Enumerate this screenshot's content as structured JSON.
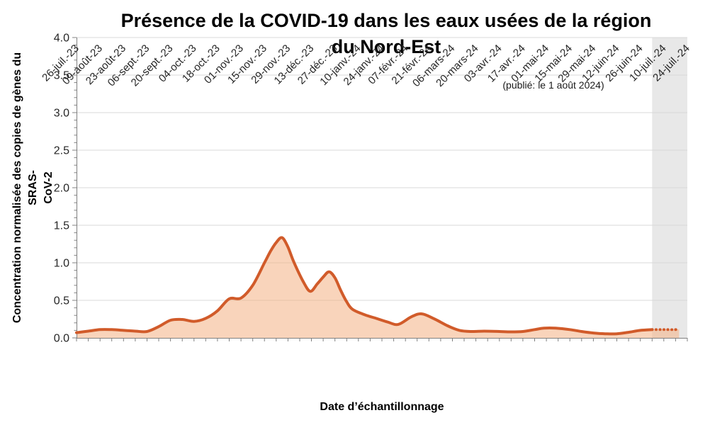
{
  "page": {
    "background": "#FFFFFF"
  },
  "chart_data": {
    "type": "area",
    "title": "Présence de la COVID-19 dans les eaux usées de la région du Nord-Est",
    "title_line1": "Présence de la COVID-19 dans les eaux usées de la région",
    "title_line2": "du Nord-Est",
    "published_note": "(publié: le 1 août 2024)",
    "xlabel": "Date d’échantillonnage",
    "ylabel": "Concentration normalisée des copies de gènes du SRAS-CoV-2",
    "ylabel_line1": "Concentration normalisée des copies de gènes du SRAS-",
    "ylabel_line2": "CoV-2",
    "grid": true,
    "legend": "none",
    "grid_color": "#D9D9D9",
    "axis_color": "#808080",
    "text_color": "#262626",
    "y_axis": {
      "min": 0.0,
      "max": 4.0,
      "major_step": 0.5,
      "minor_step": 0.1,
      "tick_labels": [
        "0.0",
        "0.5",
        "1.0",
        "1.5",
        "2.0",
        "2.5",
        "3.0",
        "3.5",
        "4.0"
      ]
    },
    "x_axis": {
      "total_weeks": 52,
      "tick_every_weeks": 1,
      "label_every_weeks": 2,
      "tick_labels": [
        "26-juil.-23",
        "09-août-23",
        "23-août-23",
        "06-sept.-23",
        "20-sept.-23",
        "04-oct.-23",
        "18-oct.-23",
        "01-nov.-23",
        "15-nov.-23",
        "29-nov.-23",
        "13-déc.-23",
        "27-déc.-23",
        "10-janv.-24",
        "24-janv.-24",
        "07-févr.-24",
        "21-févr.-24",
        "06-mars-24",
        "20-mars-24",
        "03-avr.-24",
        "17-avr.-24",
        "01-mai-24",
        "15-mai-24",
        "29-mai-24",
        "12-juin-24",
        "26-juin-24",
        "10-juil.-24",
        "24-juil.-24"
      ]
    },
    "series": {
      "name": "Concentration normalisée des copies de gènes du SRAS-CoV-2",
      "line_color": "#D15B2A",
      "fill_color": "rgba(244,177,131,0.55)",
      "points_weekly": [
        [
          0,
          0.07
        ],
        [
          1,
          0.09
        ],
        [
          2,
          0.11
        ],
        [
          3,
          0.11
        ],
        [
          4,
          0.1
        ],
        [
          5,
          0.09
        ],
        [
          6,
          0.085
        ],
        [
          7,
          0.15
        ],
        [
          8,
          0.235
        ],
        [
          9,
          0.245
        ],
        [
          10,
          0.22
        ],
        [
          11,
          0.26
        ],
        [
          12,
          0.36
        ],
        [
          13,
          0.52
        ],
        [
          14,
          0.53
        ],
        [
          15,
          0.7
        ],
        [
          16,
          1.0
        ],
        [
          16.5,
          1.15
        ],
        [
          17,
          1.27
        ],
        [
          17.5,
          1.335
        ],
        [
          18,
          1.21
        ],
        [
          18.5,
          1.01
        ],
        [
          19.3,
          0.75
        ],
        [
          19.9,
          0.62
        ],
        [
          20.5,
          0.72
        ],
        [
          21,
          0.81
        ],
        [
          21.5,
          0.88
        ],
        [
          22,
          0.8
        ],
        [
          22.5,
          0.63
        ],
        [
          23,
          0.48
        ],
        [
          23.5,
          0.38
        ],
        [
          24.5,
          0.31
        ],
        [
          25.5,
          0.26
        ],
        [
          26.5,
          0.21
        ],
        [
          27.4,
          0.18
        ],
        [
          28.5,
          0.28
        ],
        [
          29.4,
          0.32
        ],
        [
          30.5,
          0.25
        ],
        [
          31.6,
          0.16
        ],
        [
          32.6,
          0.1
        ],
        [
          33.6,
          0.085
        ],
        [
          34.7,
          0.09
        ],
        [
          36,
          0.085
        ],
        [
          37,
          0.08
        ],
        [
          38,
          0.085
        ],
        [
          39,
          0.11
        ],
        [
          39.8,
          0.13
        ],
        [
          40.8,
          0.13
        ],
        [
          42,
          0.11
        ],
        [
          43,
          0.085
        ],
        [
          44,
          0.065
        ],
        [
          45,
          0.055
        ],
        [
          46,
          0.055
        ],
        [
          47,
          0.075
        ],
        [
          48,
          0.1
        ],
        [
          49,
          0.11
        ]
      ],
      "dotted_points_weekly": [
        [
          49,
          0.11
        ],
        [
          50,
          0.11
        ],
        [
          51,
          0.11
        ],
        [
          51.3,
          0.115
        ]
      ]
    },
    "provisional_band": {
      "start_week": 49,
      "end_week": 52,
      "fill": "#E8E8E8"
    }
  }
}
